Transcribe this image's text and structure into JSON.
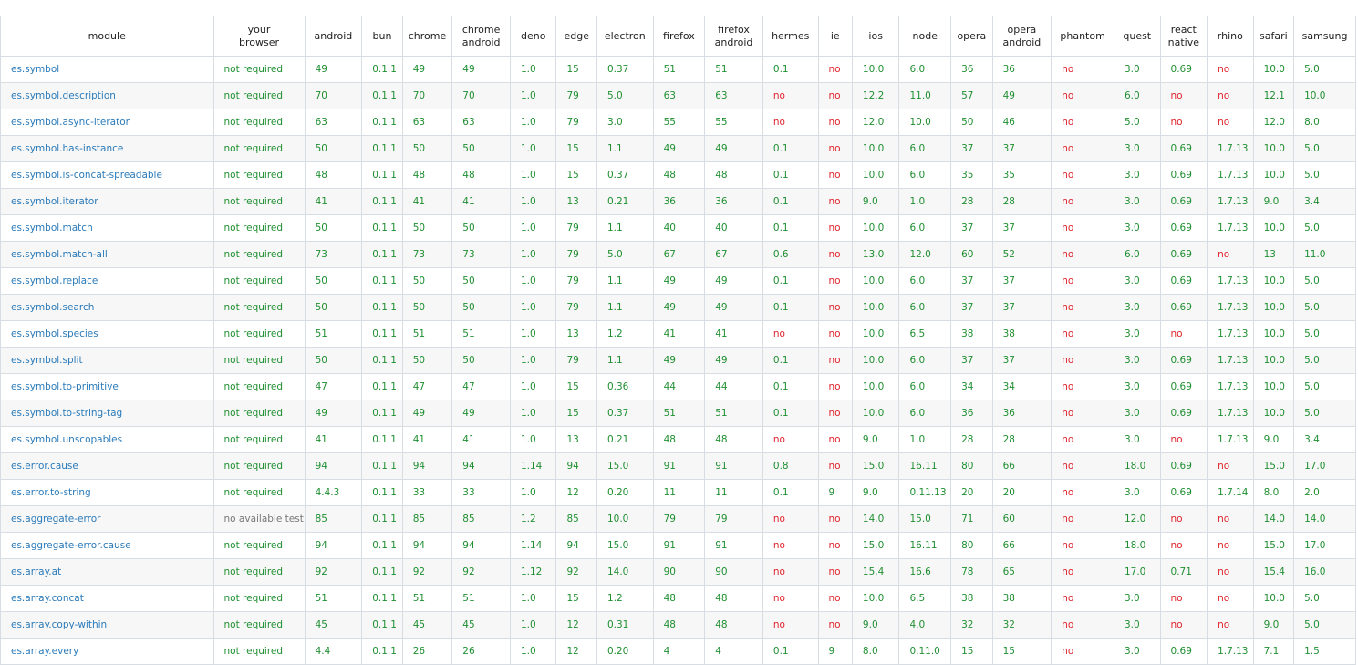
{
  "columns": [
    [
      "module"
    ],
    [
      "your",
      "browser"
    ],
    [
      "android"
    ],
    [
      "bun"
    ],
    [
      "chrome"
    ],
    [
      "chrome",
      "android"
    ],
    [
      "deno"
    ],
    [
      "edge"
    ],
    [
      "electron"
    ],
    [
      "firefox"
    ],
    [
      "firefox",
      "android"
    ],
    [
      "hermes"
    ],
    [
      "ie"
    ],
    [
      "ios"
    ],
    [
      "node"
    ],
    [
      "opera"
    ],
    [
      "opera",
      "android"
    ],
    [
      "phantom"
    ],
    [
      "quest"
    ],
    [
      "react",
      "native"
    ],
    [
      "rhino"
    ],
    [
      "safari"
    ],
    [
      "samsung"
    ]
  ],
  "rows": [
    [
      "es.symbol",
      "not required",
      "49",
      "0.1.1",
      "49",
      "49",
      "1.0",
      "15",
      "0.37",
      "51",
      "51",
      "0.1",
      "no",
      "10.0",
      "6.0",
      "36",
      "36",
      "no",
      "3.0",
      "0.69",
      "no",
      "10.0",
      "5.0"
    ],
    [
      "es.symbol.description",
      "not required",
      "70",
      "0.1.1",
      "70",
      "70",
      "1.0",
      "79",
      "5.0",
      "63",
      "63",
      "no",
      "no",
      "12.2",
      "11.0",
      "57",
      "49",
      "no",
      "6.0",
      "no",
      "no",
      "12.1",
      "10.0"
    ],
    [
      "es.symbol.async-iterator",
      "not required",
      "63",
      "0.1.1",
      "63",
      "63",
      "1.0",
      "79",
      "3.0",
      "55",
      "55",
      "no",
      "no",
      "12.0",
      "10.0",
      "50",
      "46",
      "no",
      "5.0",
      "no",
      "no",
      "12.0",
      "8.0"
    ],
    [
      "es.symbol.has-instance",
      "not required",
      "50",
      "0.1.1",
      "50",
      "50",
      "1.0",
      "15",
      "1.1",
      "49",
      "49",
      "0.1",
      "no",
      "10.0",
      "6.0",
      "37",
      "37",
      "no",
      "3.0",
      "0.69",
      "1.7.13",
      "10.0",
      "5.0"
    ],
    [
      "es.symbol.is-concat-spreadable",
      "not required",
      "48",
      "0.1.1",
      "48",
      "48",
      "1.0",
      "15",
      "0.37",
      "48",
      "48",
      "0.1",
      "no",
      "10.0",
      "6.0",
      "35",
      "35",
      "no",
      "3.0",
      "0.69",
      "1.7.13",
      "10.0",
      "5.0"
    ],
    [
      "es.symbol.iterator",
      "not required",
      "41",
      "0.1.1",
      "41",
      "41",
      "1.0",
      "13",
      "0.21",
      "36",
      "36",
      "0.1",
      "no",
      "9.0",
      "1.0",
      "28",
      "28",
      "no",
      "3.0",
      "0.69",
      "1.7.13",
      "9.0",
      "3.4"
    ],
    [
      "es.symbol.match",
      "not required",
      "50",
      "0.1.1",
      "50",
      "50",
      "1.0",
      "79",
      "1.1",
      "40",
      "40",
      "0.1",
      "no",
      "10.0",
      "6.0",
      "37",
      "37",
      "no",
      "3.0",
      "0.69",
      "1.7.13",
      "10.0",
      "5.0"
    ],
    [
      "es.symbol.match-all",
      "not required",
      "73",
      "0.1.1",
      "73",
      "73",
      "1.0",
      "79",
      "5.0",
      "67",
      "67",
      "0.6",
      "no",
      "13.0",
      "12.0",
      "60",
      "52",
      "no",
      "6.0",
      "0.69",
      "no",
      "13",
      "11.0"
    ],
    [
      "es.symbol.replace",
      "not required",
      "50",
      "0.1.1",
      "50",
      "50",
      "1.0",
      "79",
      "1.1",
      "49",
      "49",
      "0.1",
      "no",
      "10.0",
      "6.0",
      "37",
      "37",
      "no",
      "3.0",
      "0.69",
      "1.7.13",
      "10.0",
      "5.0"
    ],
    [
      "es.symbol.search",
      "not required",
      "50",
      "0.1.1",
      "50",
      "50",
      "1.0",
      "79",
      "1.1",
      "49",
      "49",
      "0.1",
      "no",
      "10.0",
      "6.0",
      "37",
      "37",
      "no",
      "3.0",
      "0.69",
      "1.7.13",
      "10.0",
      "5.0"
    ],
    [
      "es.symbol.species",
      "not required",
      "51",
      "0.1.1",
      "51",
      "51",
      "1.0",
      "13",
      "1.2",
      "41",
      "41",
      "no",
      "no",
      "10.0",
      "6.5",
      "38",
      "38",
      "no",
      "3.0",
      "no",
      "1.7.13",
      "10.0",
      "5.0"
    ],
    [
      "es.symbol.split",
      "not required",
      "50",
      "0.1.1",
      "50",
      "50",
      "1.0",
      "79",
      "1.1",
      "49",
      "49",
      "0.1",
      "no",
      "10.0",
      "6.0",
      "37",
      "37",
      "no",
      "3.0",
      "0.69",
      "1.7.13",
      "10.0",
      "5.0"
    ],
    [
      "es.symbol.to-primitive",
      "not required",
      "47",
      "0.1.1",
      "47",
      "47",
      "1.0",
      "15",
      "0.36",
      "44",
      "44",
      "0.1",
      "no",
      "10.0",
      "6.0",
      "34",
      "34",
      "no",
      "3.0",
      "0.69",
      "1.7.13",
      "10.0",
      "5.0"
    ],
    [
      "es.symbol.to-string-tag",
      "not required",
      "49",
      "0.1.1",
      "49",
      "49",
      "1.0",
      "15",
      "0.37",
      "51",
      "51",
      "0.1",
      "no",
      "10.0",
      "6.0",
      "36",
      "36",
      "no",
      "3.0",
      "0.69",
      "1.7.13",
      "10.0",
      "5.0"
    ],
    [
      "es.symbol.unscopables",
      "not required",
      "41",
      "0.1.1",
      "41",
      "41",
      "1.0",
      "13",
      "0.21",
      "48",
      "48",
      "no",
      "no",
      "9.0",
      "1.0",
      "28",
      "28",
      "no",
      "3.0",
      "no",
      "1.7.13",
      "9.0",
      "3.4"
    ],
    [
      "es.error.cause",
      "not required",
      "94",
      "0.1.1",
      "94",
      "94",
      "1.14",
      "94",
      "15.0",
      "91",
      "91",
      "0.8",
      "no",
      "15.0",
      "16.11",
      "80",
      "66",
      "no",
      "18.0",
      "0.69",
      "no",
      "15.0",
      "17.0"
    ],
    [
      "es.error.to-string",
      "not required",
      "4.4.3",
      "0.1.1",
      "33",
      "33",
      "1.0",
      "12",
      "0.20",
      "11",
      "11",
      "0.1",
      "9",
      "9.0",
      "0.11.13",
      "20",
      "20",
      "no",
      "3.0",
      "0.69",
      "1.7.14",
      "8.0",
      "2.0"
    ],
    [
      "es.aggregate-error",
      "no available test",
      "85",
      "0.1.1",
      "85",
      "85",
      "1.2",
      "85",
      "10.0",
      "79",
      "79",
      "no",
      "no",
      "14.0",
      "15.0",
      "71",
      "60",
      "no",
      "12.0",
      "no",
      "no",
      "14.0",
      "14.0"
    ],
    [
      "es.aggregate-error.cause",
      "not required",
      "94",
      "0.1.1",
      "94",
      "94",
      "1.14",
      "94",
      "15.0",
      "91",
      "91",
      "no",
      "no",
      "15.0",
      "16.11",
      "80",
      "66",
      "no",
      "18.0",
      "no",
      "no",
      "15.0",
      "17.0"
    ],
    [
      "es.array.at",
      "not required",
      "92",
      "0.1.1",
      "92",
      "92",
      "1.12",
      "92",
      "14.0",
      "90",
      "90",
      "no",
      "no",
      "15.4",
      "16.6",
      "78",
      "65",
      "no",
      "17.0",
      "0.71",
      "no",
      "15.4",
      "16.0"
    ],
    [
      "es.array.concat",
      "not required",
      "51",
      "0.1.1",
      "51",
      "51",
      "1.0",
      "15",
      "1.2",
      "48",
      "48",
      "no",
      "no",
      "10.0",
      "6.5",
      "38",
      "38",
      "no",
      "3.0",
      "no",
      "no",
      "10.0",
      "5.0"
    ],
    [
      "es.array.copy-within",
      "not required",
      "45",
      "0.1.1",
      "45",
      "45",
      "1.0",
      "12",
      "0.31",
      "48",
      "48",
      "no",
      "no",
      "9.0",
      "4.0",
      "32",
      "32",
      "no",
      "3.0",
      "no",
      "no",
      "9.0",
      "5.0"
    ],
    [
      "es.array.every",
      "not required",
      "4.4",
      "0.1.1",
      "26",
      "26",
      "1.0",
      "12",
      "0.20",
      "4",
      "4",
      "0.1",
      "9",
      "8.0",
      "0.11.0",
      "15",
      "15",
      "no",
      "3.0",
      "0.69",
      "1.7.13",
      "7.1",
      "1.5"
    ]
  ],
  "colors": {
    "link": "#2a7ab9",
    "yes": "#1f8f31",
    "no": "#e0242d",
    "na": "#777777"
  }
}
